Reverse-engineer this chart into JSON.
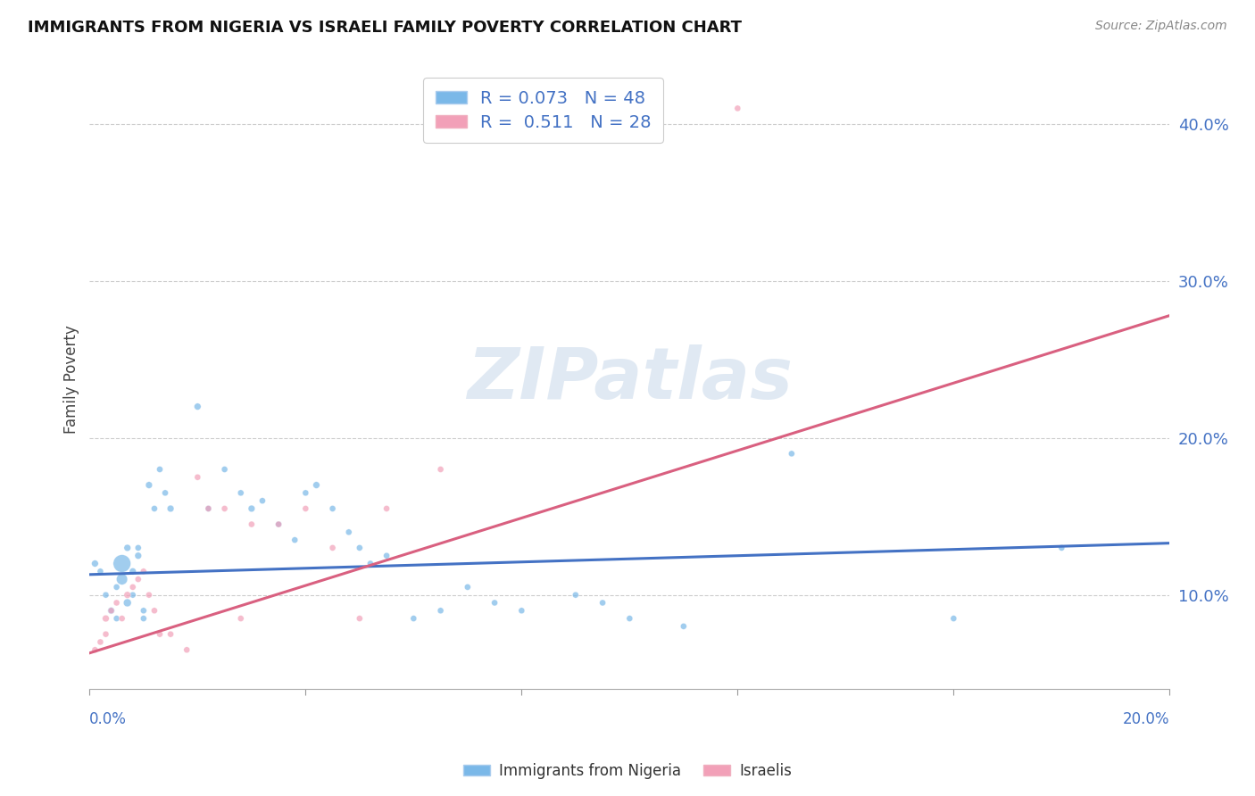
{
  "title": "IMMIGRANTS FROM NIGERIA VS ISRAELI FAMILY POVERTY CORRELATION CHART",
  "source": "Source: ZipAtlas.com",
  "ylabel": "Family Poverty",
  "xlim": [
    0.0,
    0.2
  ],
  "ylim": [
    0.04,
    0.435
  ],
  "yticks": [
    0.1,
    0.2,
    0.3,
    0.4
  ],
  "ytick_labels": [
    "10.0%",
    "20.0%",
    "30.0%",
    "40.0%"
  ],
  "xticks": [
    0.0,
    0.04,
    0.08,
    0.12,
    0.16,
    0.2
  ],
  "blue_color": "#7ab8e8",
  "pink_color": "#f2a0b8",
  "blue_line_color": "#4472c4",
  "pink_line_color": "#d96080",
  "blue_line_x": [
    0.0,
    0.2
  ],
  "blue_line_y": [
    0.113,
    0.133
  ],
  "pink_line_x": [
    0.0,
    0.2
  ],
  "pink_line_y": [
    0.063,
    0.278
  ],
  "nigeria_x": [
    0.001,
    0.002,
    0.003,
    0.004,
    0.005,
    0.005,
    0.006,
    0.006,
    0.007,
    0.007,
    0.008,
    0.008,
    0.009,
    0.009,
    0.01,
    0.01,
    0.011,
    0.012,
    0.013,
    0.014,
    0.015,
    0.02,
    0.022,
    0.025,
    0.028,
    0.03,
    0.032,
    0.035,
    0.038,
    0.04,
    0.042,
    0.045,
    0.048,
    0.05,
    0.052,
    0.055,
    0.06,
    0.065,
    0.07,
    0.075,
    0.08,
    0.09,
    0.095,
    0.1,
    0.11,
    0.13,
    0.16,
    0.18
  ],
  "nigeria_y": [
    0.12,
    0.115,
    0.1,
    0.09,
    0.085,
    0.105,
    0.12,
    0.11,
    0.095,
    0.13,
    0.1,
    0.115,
    0.125,
    0.13,
    0.09,
    0.085,
    0.17,
    0.155,
    0.18,
    0.165,
    0.155,
    0.22,
    0.155,
    0.18,
    0.165,
    0.155,
    0.16,
    0.145,
    0.135,
    0.165,
    0.17,
    0.155,
    0.14,
    0.13,
    0.12,
    0.125,
    0.085,
    0.09,
    0.105,
    0.095,
    0.09,
    0.1,
    0.095,
    0.085,
    0.08,
    0.19,
    0.085,
    0.13
  ],
  "nigeria_size": [
    30,
    25,
    25,
    30,
    25,
    25,
    200,
    80,
    40,
    30,
    25,
    30,
    30,
    25,
    25,
    25,
    30,
    25,
    25,
    25,
    30,
    30,
    25,
    25,
    25,
    30,
    25,
    25,
    25,
    25,
    30,
    25,
    25,
    25,
    25,
    25,
    25,
    25,
    25,
    25,
    25,
    25,
    25,
    25,
    25,
    25,
    25,
    25
  ],
  "israeli_x": [
    0.001,
    0.002,
    0.003,
    0.003,
    0.004,
    0.005,
    0.006,
    0.007,
    0.008,
    0.009,
    0.01,
    0.011,
    0.012,
    0.013,
    0.015,
    0.018,
    0.02,
    0.022,
    0.025,
    0.028,
    0.03,
    0.035,
    0.04,
    0.045,
    0.05,
    0.055,
    0.065,
    0.12
  ],
  "israeli_y": [
    0.065,
    0.07,
    0.075,
    0.085,
    0.09,
    0.095,
    0.085,
    0.1,
    0.105,
    0.11,
    0.115,
    0.1,
    0.09,
    0.075,
    0.075,
    0.065,
    0.175,
    0.155,
    0.155,
    0.085,
    0.145,
    0.145,
    0.155,
    0.13,
    0.085,
    0.155,
    0.18,
    0.41
  ],
  "israeli_size": [
    25,
    25,
    25,
    30,
    25,
    25,
    25,
    30,
    25,
    25,
    25,
    25,
    25,
    25,
    25,
    25,
    25,
    25,
    25,
    25,
    25,
    25,
    25,
    25,
    25,
    25,
    25,
    25
  ]
}
